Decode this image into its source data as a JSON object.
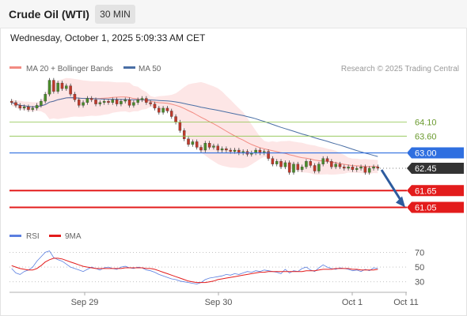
{
  "header": {
    "title": "Crude Oil (WTI)",
    "interval": "30 MIN",
    "timestamp": "Wednesday, October 1, 2025 5:09:33 AM CET"
  },
  "legend": {
    "ma20": "MA 20 + Bollinger Bands",
    "ma50": "MA 50",
    "credit": "Research © 2025 Trading Central",
    "rsi": "RSI",
    "rsi_ma": "9MA"
  },
  "colors": {
    "ma20": "#f28b82",
    "band_fill": "#fde3e3",
    "ma50": "#4a6fa5",
    "candle_up": "#4a8c2a",
    "candle_down": "#c0392b",
    "resistance_green": "#8bc34a",
    "pivot_blue": "#2f6fe0",
    "support_red": "#e31c1c",
    "current_price_tag": "#333333",
    "forecast_arrow": "#2d5b9e",
    "rsi_line": "#5b7fe0",
    "rsi_ma_line": "#e31c1c"
  },
  "chart_data": [
    {
      "type": "candlestick",
      "title": "Crude Oil (WTI)",
      "interval": "30 MIN",
      "ylim": [
        60.5,
        65.7
      ],
      "x_ticks": [
        "Sep 29",
        "Sep 30",
        "Oct 1",
        "Oct 11"
      ],
      "closes": [
        64.8,
        64.7,
        64.6,
        64.65,
        64.55,
        64.6,
        64.7,
        64.85,
        65.1,
        65.6,
        65.2,
        65.5,
        65.3,
        65.4,
        65.1,
        64.9,
        64.7,
        64.8,
        64.95,
        64.9,
        64.75,
        64.8,
        64.85,
        64.8,
        64.9,
        64.75,
        64.85,
        64.9,
        64.7,
        64.8,
        64.9,
        64.95,
        64.8,
        64.75,
        64.6,
        64.45,
        64.6,
        64.5,
        64.3,
        64.1,
        63.8,
        63.5,
        63.3,
        63.4,
        63.2,
        63.1,
        63.35,
        63.2,
        63.25,
        63.1,
        63.15,
        63.1,
        63.05,
        63.1,
        63.0,
        63.05,
        62.95,
        63.0,
        63.1,
        63.0,
        63.05,
        62.8,
        62.6,
        62.7,
        62.5,
        62.65,
        62.3,
        62.6,
        62.4,
        62.5,
        62.7,
        62.55,
        62.35,
        62.6,
        62.8,
        62.7,
        62.5,
        62.6,
        62.5,
        62.45,
        62.5,
        62.4,
        62.45,
        62.5,
        62.3,
        62.45,
        62.5,
        62.45
      ],
      "levels": [
        {
          "value": 64.1,
          "label": "64.10",
          "kind": "resistance"
        },
        {
          "value": 63.6,
          "label": "63.60",
          "kind": "resistance"
        },
        {
          "value": 63.0,
          "label": "63.00",
          "kind": "pivot"
        },
        {
          "value": 62.45,
          "label": "62.45",
          "kind": "last_price"
        },
        {
          "value": 61.65,
          "label": "61.65",
          "kind": "support"
        },
        {
          "value": 61.05,
          "label": "61.05",
          "kind": "support"
        }
      ],
      "forecast": {
        "from": 62.45,
        "to": 61.05,
        "direction": "down"
      },
      "series": [
        {
          "name": "MA 20 + Bollinger Bands"
        },
        {
          "name": "MA 50"
        }
      ]
    },
    {
      "type": "line",
      "panel": "oscillator",
      "ylim": [
        20,
        78
      ],
      "y_ticks": [
        70,
        50,
        30
      ],
      "series": [
        {
          "name": "RSI",
          "values": [
            48,
            42,
            40,
            44,
            46,
            50,
            58,
            64,
            70,
            72,
            63,
            60,
            58,
            54,
            50,
            48,
            46,
            44,
            47,
            50,
            48,
            46,
            49,
            50,
            48,
            47,
            50,
            51,
            49,
            48,
            50,
            49,
            46,
            45,
            43,
            40,
            38,
            36,
            34,
            33,
            31,
            30,
            29,
            28,
            27,
            29,
            33,
            35,
            36,
            37,
            38,
            40,
            39,
            41,
            40,
            42,
            44,
            43,
            45,
            44,
            46,
            45,
            44,
            43,
            41,
            47,
            42,
            45,
            44,
            48,
            50,
            46,
            44,
            49,
            53,
            50,
            48,
            47,
            49,
            48,
            47,
            45,
            46,
            44,
            47,
            45,
            49,
            48
          ]
        },
        {
          "name": "9MA",
          "values": [
            52,
            50,
            48,
            47,
            46,
            46,
            48,
            52,
            57,
            60,
            62,
            62,
            61,
            59,
            57,
            55,
            53,
            51,
            50,
            49,
            48,
            48,
            48,
            48,
            48,
            48,
            48,
            49,
            49,
            49,
            49,
            49,
            48,
            48,
            47,
            45,
            43,
            41,
            39,
            37,
            35,
            33,
            31,
            30,
            29,
            29,
            29,
            30,
            31,
            33,
            34,
            35,
            36,
            37,
            38,
            39,
            40,
            41,
            42,
            43,
            43,
            44,
            44,
            44,
            44,
            44,
            44,
            44,
            44,
            44,
            45,
            45,
            45,
            46,
            47,
            47,
            47,
            48,
            48,
            48,
            48,
            47,
            47,
            46,
            46,
            46,
            46,
            47
          ]
        }
      ]
    }
  ]
}
